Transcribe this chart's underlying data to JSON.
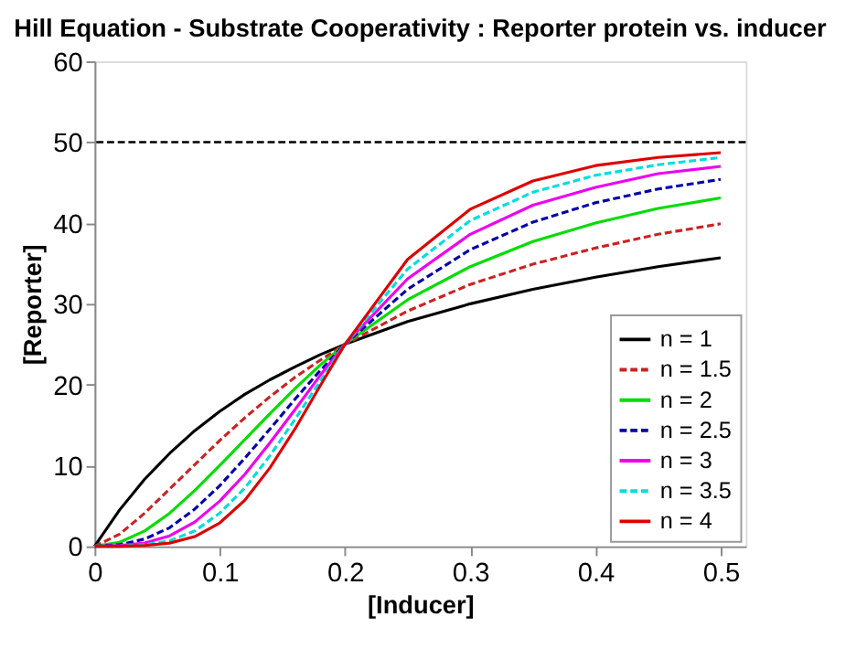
{
  "chart_data": {
    "type": "line",
    "title": "Hill Equation - Substrate Cooperativity :  Reporter protein vs. inducer",
    "xlabel": "[Inducer]",
    "ylabel": "[Reporter]",
    "x": [
      0,
      0.02,
      0.04,
      0.06,
      0.08,
      0.1,
      0.12,
      0.14,
      0.16,
      0.18,
      0.2,
      0.25,
      0.3,
      0.35,
      0.4,
      0.45,
      0.5
    ],
    "series": [
      {
        "name": "n = 1",
        "color": "#000000",
        "line_style": "solid",
        "values": [
          0,
          4.5,
          8.3,
          11.5,
          14.3,
          16.7,
          18.8,
          20.6,
          22.2,
          23.7,
          25,
          27.8,
          30,
          31.8,
          33.3,
          34.6,
          35.7
        ]
      },
      {
        "name": "n = 1.5",
        "color": "#cc2222",
        "line_style": "dashed",
        "values": [
          0,
          1.5,
          4.1,
          7.1,
          10.1,
          13.1,
          15.9,
          18.5,
          20.9,
          23.0,
          25,
          29.1,
          32.4,
          34.9,
          36.9,
          38.6,
          39.9
        ]
      },
      {
        "name": "n = 2",
        "color": "#00dd00",
        "line_style": "solid",
        "values": [
          0,
          0.5,
          1.9,
          4.1,
          6.9,
          10,
          13.2,
          16.4,
          19.5,
          22.4,
          25,
          30.5,
          34.6,
          37.7,
          40,
          41.8,
          43.1
        ]
      },
      {
        "name": "n = 2.5",
        "color": "#0000aa",
        "line_style": "dashed",
        "values": [
          0,
          0.2,
          0.9,
          2.3,
          4.6,
          7.5,
          10.9,
          14.5,
          18.2,
          21.7,
          25,
          31.8,
          36.7,
          40.1,
          42.5,
          44.2,
          45.4
        ]
      },
      {
        "name": "n = 3",
        "color": "#ee00ee",
        "line_style": "solid",
        "values": [
          0,
          0.1,
          0.4,
          1.3,
          3.0,
          5.6,
          8.9,
          12.8,
          16.9,
          21.1,
          25,
          33.1,
          38.6,
          42.2,
          44.4,
          46.1,
          47.0
        ]
      },
      {
        "name": "n = 3.5",
        "color": "#00dddd",
        "line_style": "dashed",
        "values": [
          0,
          0.0,
          0.2,
          0.7,
          1.9,
          4.1,
          7.2,
          11.2,
          15.7,
          20.4,
          25,
          34.3,
          40.3,
          43.8,
          45.9,
          47.2,
          48.1
        ]
      },
      {
        "name": "n = 4",
        "color": "#dd0000",
        "line_style": "solid",
        "values": [
          0,
          0.0,
          0.1,
          0.4,
          1.2,
          2.9,
          5.7,
          9.7,
          14.5,
          19.8,
          25,
          35.5,
          41.7,
          45.2,
          47.1,
          48.1,
          48.7
        ]
      }
    ],
    "xlim": [
      0,
      0.52
    ],
    "xticks": [
      0,
      0.1,
      0.2,
      0.3,
      0.4,
      0.5
    ],
    "ylim": [
      0,
      60
    ],
    "yticks": [
      0,
      10,
      20,
      30,
      40,
      50,
      60
    ],
    "ref_lines": [
      {
        "axis": "y",
        "value": 50,
        "label": null,
        "color": "#000000",
        "line_style": "dashed"
      }
    ],
    "grid": false,
    "legend": "bottom right",
    "marker": "none"
  }
}
